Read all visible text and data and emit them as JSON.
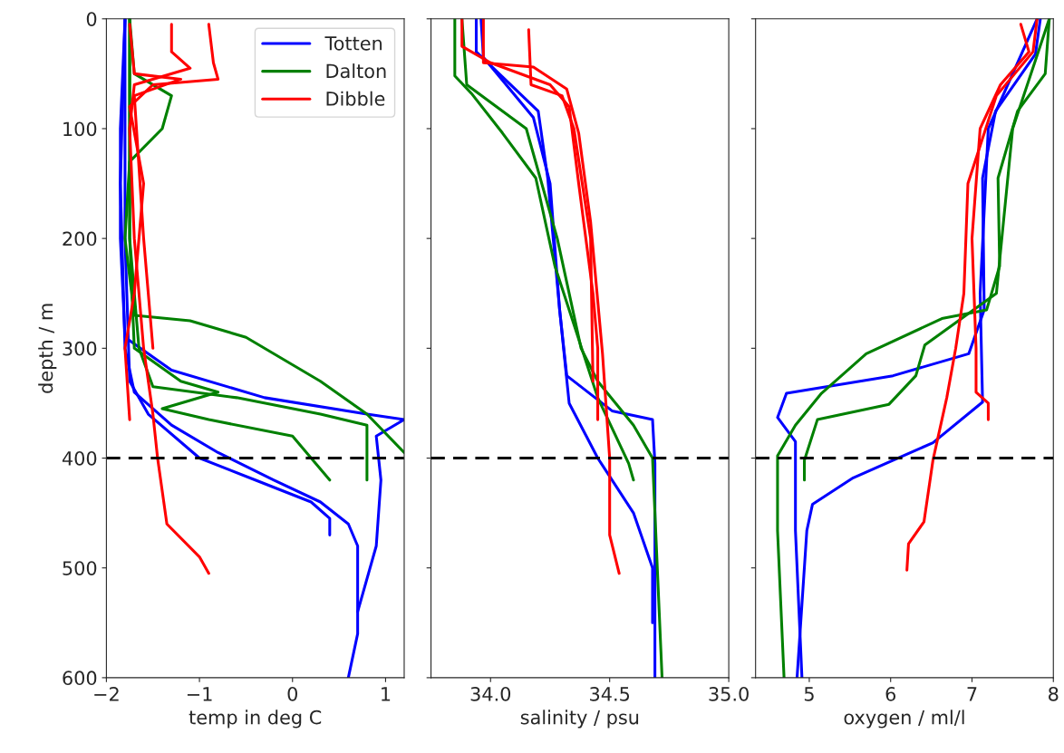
{
  "chart_data": [
    {
      "type": "line",
      "xlabel": "temp in deg C",
      "ylabel": "depth / m",
      "xlim": [
        -2,
        1.2
      ],
      "xticks": [
        {
          "value": -2,
          "label": "−2"
        },
        {
          "value": -1,
          "label": "−1"
        },
        0,
        1
      ],
      "ylim": [
        600,
        0
      ],
      "yticks": [
        0,
        100,
        200,
        300,
        400,
        500,
        600
      ],
      "legend": "top right",
      "ref_lines": [
        {
          "axis": "y",
          "value": 400,
          "color": "#000000",
          "line_style": "dashed"
        }
      ],
      "series": [
        {
          "name": "Totten",
          "color": "#0000ff",
          "x": [
            -1.8,
            -1.85,
            -1.85,
            -1.8,
            -1.3,
            -0.3,
            0.8,
            1.2,
            0.9,
            0.95,
            0.9,
            0.7
          ],
          "values": [
            0,
            100,
            200,
            290,
            320,
            345,
            360,
            365,
            380,
            420,
            480,
            540
          ]
        },
        {
          "color": "#0000ff",
          "x": [
            -1.8,
            -1.85,
            -1.8,
            -1.7,
            -1.3,
            -0.8,
            -0.2,
            0.3,
            0.6,
            0.7,
            0.7,
            0.6
          ],
          "values": [
            0,
            150,
            300,
            340,
            370,
            395,
            420,
            440,
            460,
            480,
            560,
            600
          ]
        },
        {
          "color": "#0000ff",
          "x": [
            -1.8,
            -1.8,
            -1.75,
            -1.55,
            -1.0,
            -0.4,
            0.2,
            0.4,
            0.4
          ],
          "values": [
            0,
            200,
            330,
            360,
            400,
            420,
            440,
            455,
            470
          ]
        },
        {
          "name": "Dalton",
          "color": "#008000",
          "x": [
            -1.75,
            -1.7,
            -1.3,
            -1.4,
            -1.75,
            -1.8,
            -1.7,
            -1.1,
            -0.5,
            0.3,
            0.8,
            1.2
          ],
          "values": [
            0,
            50,
            70,
            100,
            130,
            200,
            270,
            275,
            290,
            330,
            360,
            395
          ]
        },
        {
          "color": "#008000",
          "x": [
            -1.75,
            -1.75,
            -1.7,
            -1.2,
            -0.8,
            -1.4,
            -0.9,
            0.0,
            0.4
          ],
          "values": [
            0,
            200,
            300,
            330,
            340,
            355,
            365,
            380,
            420
          ]
        },
        {
          "color": "#008000",
          "x": [
            -1.75,
            -1.75,
            -1.65,
            -1.5,
            -0.6,
            0.3,
            0.8,
            0.8
          ],
          "values": [
            0,
            200,
            300,
            335,
            345,
            360,
            370,
            420
          ]
        },
        {
          "name": "Dibble",
          "color": "#ff0000",
          "x": [
            -1.3,
            -1.3,
            -1.1,
            -1.7,
            -1.75,
            -1.7,
            -1.6,
            -1.5,
            -1.45,
            -1.35,
            -1.0,
            -0.9
          ],
          "values": [
            5,
            30,
            45,
            60,
            100,
            200,
            300,
            360,
            400,
            460,
            490,
            505
          ]
        },
        {
          "color": "#ff0000",
          "x": [
            -0.9,
            -0.85,
            -0.8,
            -1.5,
            -1.75,
            -1.6,
            -1.7,
            -1.8,
            -1.75
          ],
          "values": [
            5,
            40,
            55,
            60,
            80,
            150,
            250,
            300,
            365
          ]
        },
        {
          "color": "#ff0000",
          "x": [
            -1.75,
            -1.7,
            -1.2,
            -1.7,
            -1.6,
            -1.5
          ],
          "values": [
            5,
            50,
            55,
            70,
            200,
            300
          ]
        }
      ]
    },
    {
      "type": "line",
      "xlabel": "salinity / psu",
      "xlim": [
        33.75,
        35.0
      ],
      "xticks": [
        {
          "value": 34.0,
          "label": "34.0"
        },
        {
          "value": 34.5,
          "label": "34.5"
        },
        {
          "value": 35.0,
          "label": "35.0"
        }
      ],
      "ylim": [
        600,
        0
      ],
      "yticks": [
        0,
        100,
        200,
        300,
        400,
        500,
        600
      ],
      "tick_labels": "x",
      "ref_lines": [
        {
          "axis": "y",
          "value": 400,
          "color": "#000000",
          "line_style": "dashed"
        }
      ],
      "series": [
        {
          "color": "#0000ff",
          "x": [
            33.94,
            33.94,
            34.2,
            34.24,
            34.29,
            34.32,
            34.51,
            34.68,
            34.69,
            34.69
          ],
          "values": [
            0,
            30,
            84,
            145,
            265,
            325,
            357,
            365,
            405,
            600
          ]
        },
        {
          "color": "#0000ff",
          "x": [
            33.96,
            33.97,
            34.18,
            34.25,
            34.29,
            34.33,
            34.45,
            34.6,
            34.68,
            34.68
          ],
          "values": [
            0,
            35,
            90,
            150,
            265,
            350,
            400,
            450,
            500,
            550
          ]
        },
        {
          "color": "#008000",
          "x": [
            33.85,
            33.85,
            33.92,
            34.05,
            34.19,
            34.27,
            34.45,
            34.58,
            34.6
          ],
          "values": [
            0,
            52,
            68,
            104,
            145,
            225,
            345,
            405,
            420
          ]
        },
        {
          "color": "#008000",
          "x": [
            33.88,
            33.9,
            34.15,
            34.28,
            34.38,
            34.45,
            34.6,
            34.68,
            34.72
          ],
          "values": [
            0,
            60,
            100,
            200,
            300,
            330,
            370,
            400,
            600
          ]
        },
        {
          "color": "#ff0000",
          "x": [
            33.97,
            33.97,
            34.18,
            34.32,
            34.37,
            34.42,
            34.47,
            34.5,
            34.5,
            34.54
          ],
          "values": [
            0,
            40,
            44,
            64,
            104,
            185,
            305,
            400,
            470,
            505
          ]
        },
        {
          "color": "#ff0000",
          "x": [
            33.88,
            33.88,
            34.0,
            34.25,
            34.33,
            34.37,
            34.43,
            34.45,
            34.45
          ],
          "values": [
            0,
            25,
            40,
            60,
            80,
            150,
            250,
            300,
            365
          ]
        },
        {
          "color": "#ff0000",
          "x": [
            34.16,
            34.17,
            34.3,
            34.35,
            34.42,
            34.43
          ],
          "values": [
            10,
            60,
            70,
            100,
            200,
            330
          ]
        }
      ]
    },
    {
      "type": "line",
      "xlabel": "oxygen / ml/l",
      "xlim": [
        4.34,
        8
      ],
      "xticks": [
        5,
        6,
        7,
        8
      ],
      "ylim": [
        600,
        0
      ],
      "yticks": [
        0,
        100,
        200,
        300,
        400,
        500,
        600
      ],
      "tick_labels": "x",
      "ref_lines": [
        {
          "axis": "y",
          "value": 400,
          "color": "#000000",
          "line_style": "dashed"
        }
      ],
      "series": [
        {
          "color": "#0000ff",
          "x": [
            7.84,
            7.78,
            7.29,
            7.13,
            7.15,
            6.96,
            6.03,
            4.72,
            4.61,
            4.83,
            4.83,
            4.91
          ],
          "values": [
            0,
            32,
            84,
            145,
            265,
            305,
            325,
            341,
            363,
            385,
            466,
            600
          ]
        },
        {
          "color": "#0000ff",
          "x": [
            7.8,
            7.2,
            7.1,
            7.13,
            6.52,
            5.54,
            5.04,
            4.97,
            4.85
          ],
          "values": [
            0,
            100,
            250,
            349,
            386,
            418,
            442,
            466,
            600
          ]
        },
        {
          "color": "#008000",
          "x": [
            7.95,
            7.9,
            7.56,
            7.32,
            7.34,
            7.18,
            6.63,
            5.7,
            5.15,
            4.83,
            4.61,
            4.61,
            4.69
          ],
          "values": [
            0,
            50,
            84,
            145,
            225,
            265,
            273,
            305,
            341,
            370,
            398,
            466,
            600
          ]
        },
        {
          "color": "#008000",
          "x": [
            7.95,
            7.5,
            7.3,
            6.42,
            6.31,
            5.98,
            5.1,
            4.94,
            4.94
          ],
          "values": [
            0,
            100,
            250,
            297,
            325,
            351,
            365,
            402,
            420
          ]
        },
        {
          "color": "#ff0000",
          "x": [
            7.8,
            7.75,
            7.3,
            6.95,
            6.9,
            6.8,
            6.69,
            6.52,
            6.41,
            6.22,
            6.2
          ],
          "values": [
            0,
            30,
            70,
            150,
            250,
            300,
            345,
            402,
            458,
            478,
            502
          ]
        },
        {
          "color": "#ff0000",
          "x": [
            7.6,
            7.7,
            7.35,
            7.1,
            7.0,
            7.05,
            7.05,
            7.2,
            7.2
          ],
          "values": [
            5,
            30,
            60,
            100,
            200,
            300,
            340,
            350,
            365
          ]
        }
      ]
    }
  ]
}
